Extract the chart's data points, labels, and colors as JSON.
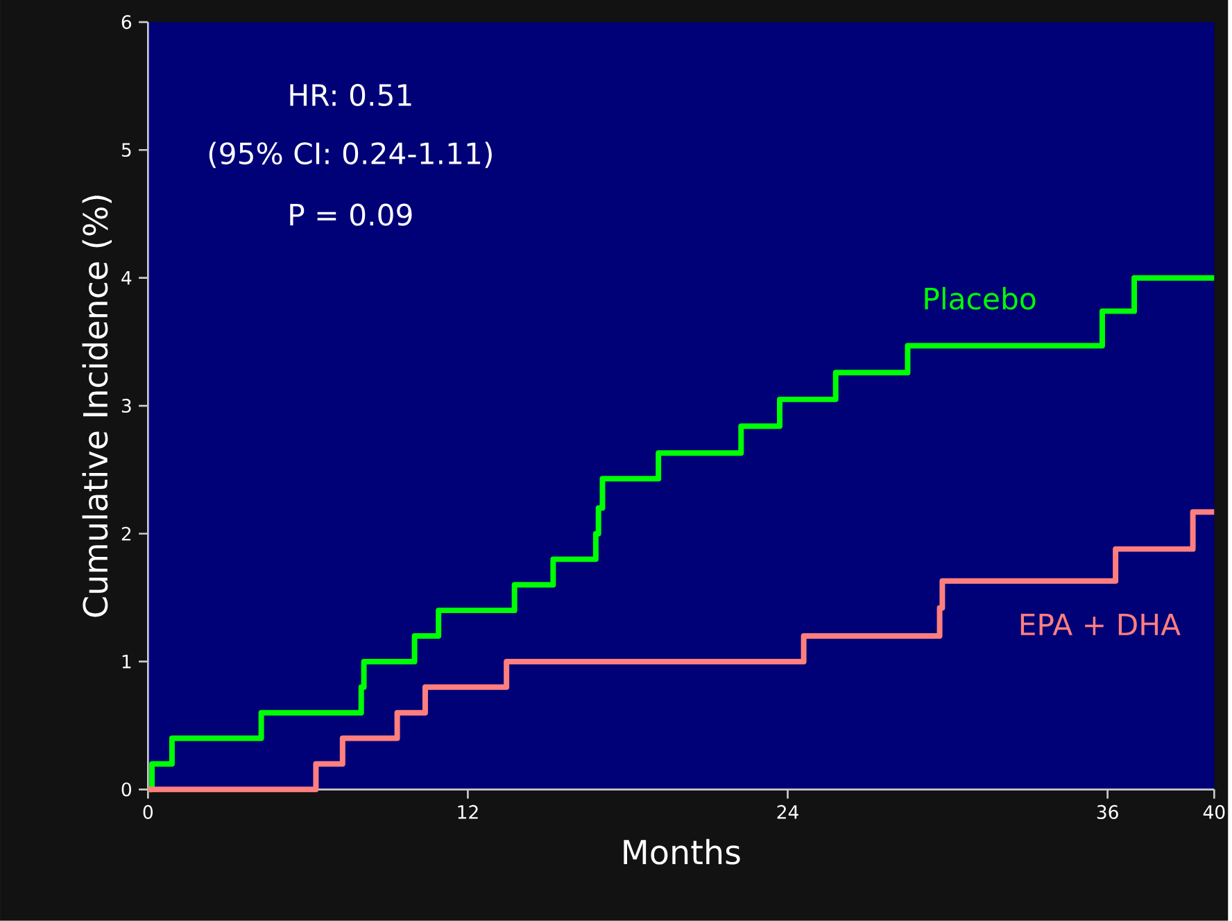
{
  "chart_data": {
    "type": "step",
    "xlabel": "Months",
    "ylabel": "Cumulative Incidence (%)",
    "xlim": [
      0,
      40
    ],
    "ylim": [
      0,
      6
    ],
    "xticks": [
      0,
      12,
      24,
      36,
      40
    ],
    "yticks": [
      0,
      1,
      2,
      3,
      4,
      5,
      6
    ],
    "grid": false,
    "legend": false,
    "marker": "none",
    "line_style": "solid",
    "annotations": [
      "HR: 0.51",
      "(95% CI: 0.24-1.11)",
      "P = 0.09"
    ],
    "series": [
      {
        "name": "Placebo",
        "color": "#00ff00",
        "x": [
          0,
          0.15,
          0.9,
          4.25,
          8.0,
          8.1,
          10.0,
          10.9,
          13.75,
          15.2,
          16.8,
          16.9,
          17.05,
          19.15,
          22.25,
          23.7,
          25.8,
          28.5,
          35.8,
          37.0,
          40
        ],
        "values": [
          0,
          0.2,
          0.4,
          0.6,
          0.8,
          1.0,
          1.2,
          1.4,
          1.6,
          1.8,
          2.0,
          2.2,
          2.43,
          2.63,
          2.84,
          3.05,
          3.26,
          3.47,
          3.74,
          4.0,
          4.0
        ]
      },
      {
        "name": "EPA + DHA",
        "color": "#ff7f7f",
        "x": [
          0,
          6.3,
          7.3,
          9.35,
          10.4,
          13.45,
          24.6,
          29.7,
          29.8,
          36.3,
          39.2,
          40
        ],
        "values": [
          0,
          0.2,
          0.4,
          0.6,
          0.8,
          1.0,
          1.2,
          1.42,
          1.63,
          1.88,
          2.17,
          2.17
        ]
      }
    ]
  }
}
